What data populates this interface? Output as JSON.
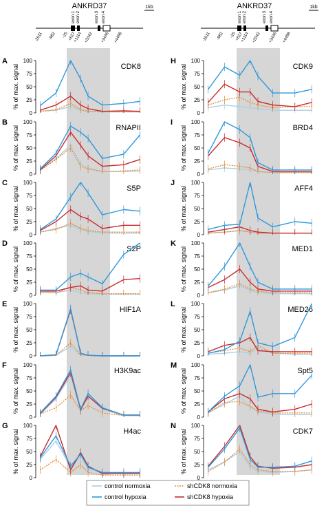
{
  "gene_maps": [
    {
      "gene": "ANKRD37",
      "scale": "1kb",
      "exons": [
        "exon 1",
        "exon 2",
        "exon 3",
        "exon 4"
      ],
      "positions": [
        "-2011",
        "-982",
        "-25",
        "+627",
        "+1114",
        "+2042",
        "+3436",
        "+4498"
      ]
    },
    {
      "gene": "ANKRD37",
      "scale": "1kb",
      "exons": [
        "exon 1",
        "exon 2",
        "exon 3",
        "exon 4"
      ],
      "positions": [
        "-2011",
        "-982",
        "-25",
        "+627",
        "+1114",
        "+2042",
        "+3436",
        "+4498"
      ]
    }
  ],
  "axis": {
    "ylabel": "% of max. signal",
    "yticks": [
      "0",
      "25",
      "50",
      "75",
      "100"
    ]
  },
  "legend": {
    "items": [
      {
        "label": "control normoxia",
        "color": "#a9cfe8",
        "style": "solid"
      },
      {
        "label": "shCDK8 normoxia",
        "color": "#e88a2a",
        "style": "dotted"
      },
      {
        "label": "control hypoxia",
        "color": "#2e97db",
        "style": "solid"
      },
      {
        "label": "shCDK8 hypoxia",
        "color": "#c8292b",
        "style": "solid"
      }
    ]
  },
  "chart_data": [
    {
      "panel": "A",
      "title": "CDK8",
      "type": "line",
      "ylim": [
        0,
        100
      ],
      "x": [
        "-2011",
        "-982",
        "-25",
        "+627",
        "+1114",
        "+2042",
        "+3436",
        "+4498"
      ],
      "series": [
        {
          "name": "control normoxia",
          "values": [
            3,
            5,
            12,
            5,
            3,
            2,
            2,
            2
          ]
        },
        {
          "name": "control hypoxia",
          "values": [
            14,
            38,
            100,
            65,
            32,
            15,
            18,
            22
          ]
        },
        {
          "name": "shCDK8 normoxia",
          "values": [
            3,
            6,
            18,
            6,
            3,
            2,
            2,
            2
          ]
        },
        {
          "name": "shCDK8 hypoxia",
          "values": [
            5,
            15,
            32,
            15,
            8,
            3,
            4,
            3
          ]
        }
      ]
    },
    {
      "panel": "B",
      "title": "RNAPII",
      "type": "line",
      "ylim": [
        0,
        100
      ],
      "x": [
        "-2011",
        "-982",
        "-25",
        "+627",
        "+1114",
        "+2042",
        "+3436",
        "+4498"
      ],
      "series": [
        {
          "name": "control normoxia",
          "values": [
            8,
            30,
            55,
            20,
            12,
            5,
            5,
            6
          ]
        },
        {
          "name": "control hypoxia",
          "values": [
            10,
            40,
            92,
            80,
            68,
            30,
            38,
            75
          ]
        },
        {
          "name": "shCDK8 normoxia",
          "values": [
            7,
            28,
            50,
            15,
            10,
            5,
            6,
            8
          ]
        },
        {
          "name": "shCDK8 hypoxia",
          "values": [
            8,
            35,
            80,
            55,
            35,
            15,
            18,
            28
          ]
        }
      ]
    },
    {
      "panel": "C",
      "title": "S5P",
      "type": "line",
      "ylim": [
        0,
        100
      ],
      "x": [
        "-2011",
        "-982",
        "-25",
        "+627",
        "+1114",
        "+2042",
        "+3436",
        "+4498"
      ],
      "series": [
        {
          "name": "control normoxia",
          "values": [
            5,
            12,
            18,
            10,
            6,
            3,
            3,
            3
          ]
        },
        {
          "name": "control hypoxia",
          "values": [
            10,
            30,
            72,
            100,
            80,
            38,
            48,
            45
          ]
        },
        {
          "name": "shCDK8 normoxia",
          "values": [
            5,
            10,
            22,
            12,
            8,
            5,
            5,
            5
          ]
        },
        {
          "name": "shCDK8 hypoxia",
          "values": [
            8,
            25,
            48,
            35,
            30,
            12,
            18,
            18
          ]
        }
      ]
    },
    {
      "panel": "D",
      "title": "S2P",
      "type": "line",
      "ylim": [
        0,
        100
      ],
      "x": [
        "-2011",
        "-982",
        "-25",
        "+627",
        "+1114",
        "+2042",
        "+3436",
        "+4498"
      ],
      "series": [
        {
          "name": "control normoxia",
          "values": [
            5,
            5,
            10,
            5,
            3,
            2,
            2,
            2
          ]
        },
        {
          "name": "control hypoxia",
          "values": [
            10,
            10,
            35,
            42,
            35,
            22,
            78,
            100
          ]
        },
        {
          "name": "shCDK8 normoxia",
          "values": [
            5,
            5,
            15,
            10,
            5,
            3,
            3,
            3
          ]
        },
        {
          "name": "shCDK8 hypoxia",
          "values": [
            8,
            8,
            15,
            18,
            10,
            8,
            30,
            32
          ]
        }
      ]
    },
    {
      "panel": "E",
      "title": "HIF1A",
      "type": "line",
      "ylim": [
        0,
        100
      ],
      "x": [
        "-2011",
        "-982",
        "-25",
        "+627",
        "+1114",
        "+2042",
        "+3436",
        "+4498"
      ],
      "series": [
        {
          "name": "control normoxia",
          "values": [
            0,
            1,
            18,
            2,
            1,
            0,
            0,
            0
          ]
        },
        {
          "name": "control hypoxia",
          "values": [
            0,
            2,
            90,
            5,
            1,
            0,
            0,
            0
          ]
        },
        {
          "name": "shCDK8 normoxia",
          "values": [
            0,
            1,
            25,
            2,
            1,
            0,
            0,
            0
          ]
        },
        {
          "name": "shCDK8 hypoxia",
          "values": [
            0,
            2,
            88,
            5,
            1,
            0,
            0,
            0
          ]
        }
      ]
    },
    {
      "panel": "F",
      "title": "H3K9ac",
      "type": "line",
      "ylim": [
        0,
        100
      ],
      "x": [
        "-2011",
        "-982",
        "-25",
        "+627",
        "+1114",
        "+2042",
        "+3436",
        "+4498"
      ],
      "series": [
        {
          "name": "control normoxia",
          "values": [
            5,
            35,
            80,
            12,
            42,
            15,
            3,
            3
          ]
        },
        {
          "name": "control hypoxia",
          "values": [
            8,
            40,
            90,
            15,
            45,
            18,
            4,
            4
          ]
        },
        {
          "name": "shCDK8 normoxia",
          "values": [
            6,
            18,
            42,
            12,
            22,
            8,
            3,
            3
          ]
        },
        {
          "name": "shCDK8 hypoxia",
          "values": [
            7,
            38,
            85,
            14,
            40,
            17,
            4,
            4
          ]
        }
      ]
    },
    {
      "panel": "G",
      "title": "H4ac",
      "type": "line",
      "ylim": [
        0,
        100
      ],
      "x": [
        "-2011",
        "-982",
        "-25",
        "+627",
        "+1114",
        "+2042",
        "+3436",
        "+4498"
      ],
      "series": [
        {
          "name": "control normoxia",
          "values": [
            35,
            70,
            20,
            40,
            18,
            8,
            8,
            8
          ]
        },
        {
          "name": "control hypoxia",
          "values": [
            38,
            80,
            22,
            45,
            20,
            10,
            10,
            10
          ]
        },
        {
          "name": "shCDK8 normoxia",
          "values": [
            15,
            35,
            10,
            25,
            10,
            5,
            5,
            5
          ]
        },
        {
          "name": "shCDK8 hypoxia",
          "values": [
            40,
            100,
            15,
            48,
            22,
            8,
            8,
            8
          ]
        }
      ]
    },
    {
      "panel": "H",
      "title": "CDK9",
      "type": "line",
      "ylim": [
        0,
        100
      ],
      "x": [
        "-2011",
        "-982",
        "-25",
        "+627",
        "+1114",
        "+2042",
        "+3436",
        "+4498"
      ],
      "series": [
        {
          "name": "control normoxia",
          "values": [
            10,
            15,
            12,
            10,
            8,
            5,
            5,
            5
          ]
        },
        {
          "name": "control hypoxia",
          "values": [
            45,
            88,
            72,
            100,
            70,
            38,
            38,
            45
          ]
        },
        {
          "name": "shCDK8 normoxia",
          "values": [
            15,
            25,
            30,
            20,
            15,
            10,
            12,
            12
          ]
        },
        {
          "name": "shCDK8 hypoxia",
          "values": [
            20,
            55,
            40,
            40,
            22,
            15,
            12,
            20
          ]
        }
      ]
    },
    {
      "panel": "I",
      "title": "BRD4",
      "type": "line",
      "ylim": [
        0,
        100
      ],
      "x": [
        "-2011",
        "-982",
        "-25",
        "+627",
        "+1114",
        "+2042",
        "+3436",
        "+4498"
      ],
      "series": [
        {
          "name": "control normoxia",
          "values": [
            8,
            12,
            10,
            8,
            5,
            3,
            3,
            3
          ]
        },
        {
          "name": "control hypoxia",
          "values": [
            40,
            100,
            85,
            70,
            22,
            8,
            8,
            8
          ]
        },
        {
          "name": "shCDK8 normoxia",
          "values": [
            10,
            18,
            15,
            12,
            5,
            3,
            3,
            3
          ]
        },
        {
          "name": "shCDK8 hypoxia",
          "values": [
            35,
            70,
            60,
            50,
            15,
            5,
            5,
            5
          ]
        }
      ]
    },
    {
      "panel": "J",
      "title": "AFF4",
      "type": "line",
      "ylim": [
        0,
        100
      ],
      "x": [
        "-2011",
        "-982",
        "-25",
        "+627",
        "+1114",
        "+2042",
        "+3436",
        "+4498"
      ],
      "series": [
        {
          "name": "control normoxia",
          "values": [
            3,
            5,
            8,
            5,
            3,
            3,
            3,
            3
          ]
        },
        {
          "name": "control hypoxia",
          "values": [
            10,
            18,
            20,
            100,
            32,
            15,
            25,
            22
          ]
        },
        {
          "name": "shCDK8 normoxia",
          "values": [
            3,
            5,
            8,
            5,
            3,
            3,
            3,
            3
          ]
        },
        {
          "name": "shCDK8 hypoxia",
          "values": [
            5,
            10,
            15,
            8,
            5,
            3,
            3,
            3
          ]
        }
      ]
    },
    {
      "panel": "K",
      "title": "MED1",
      "type": "line",
      "ylim": [
        0,
        100
      ],
      "x": [
        "-2011",
        "-982",
        "-25",
        "+627",
        "+1114",
        "+2042",
        "+3436",
        "+4498"
      ],
      "series": [
        {
          "name": "control normoxia",
          "values": [
            5,
            10,
            18,
            10,
            5,
            3,
            3,
            3
          ]
        },
        {
          "name": "control hypoxia",
          "values": [
            18,
            55,
            100,
            55,
            25,
            12,
            12,
            12
          ]
        },
        {
          "name": "shCDK8 normoxia",
          "values": [
            5,
            12,
            22,
            12,
            8,
            5,
            5,
            5
          ]
        },
        {
          "name": "shCDK8 hypoxia",
          "values": [
            15,
            30,
            50,
            25,
            12,
            8,
            8,
            8
          ]
        }
      ]
    },
    {
      "panel": "L",
      "title": "MED26",
      "type": "line",
      "ylim": [
        0,
        100
      ],
      "x": [
        "-2011",
        "-982",
        "-25",
        "+627",
        "+1114",
        "+2042",
        "+3436",
        "+4498"
      ],
      "series": [
        {
          "name": "control normoxia",
          "values": [
            3,
            5,
            8,
            5,
            15,
            5,
            3,
            3
          ]
        },
        {
          "name": "control hypoxia",
          "values": [
            5,
            12,
            28,
            85,
            25,
            18,
            35,
            100
          ]
        },
        {
          "name": "shCDK8 normoxia",
          "values": [
            5,
            10,
            15,
            8,
            20,
            5,
            5,
            5
          ]
        },
        {
          "name": "shCDK8 hypoxia",
          "values": [
            8,
            20,
            25,
            35,
            10,
            8,
            8,
            8
          ]
        }
      ]
    },
    {
      "panel": "M",
      "title": "Spt5",
      "type": "line",
      "ylim": [
        0,
        100
      ],
      "x": [
        "-2011",
        "-982",
        "-25",
        "+627",
        "+1114",
        "+2042",
        "+3436",
        "+4498"
      ],
      "series": [
        {
          "name": "control normoxia",
          "values": [
            8,
            25,
            40,
            20,
            10,
            5,
            5,
            5
          ]
        },
        {
          "name": "control hypoxia",
          "values": [
            10,
            40,
            60,
            100,
            38,
            45,
            45,
            80
          ]
        },
        {
          "name": "shCDK8 normoxia",
          "values": [
            8,
            28,
            30,
            20,
            12,
            8,
            8,
            8
          ]
        },
        {
          "name": "shCDK8 hypoxia",
          "values": [
            10,
            35,
            45,
            35,
            15,
            10,
            15,
            25
          ]
        }
      ]
    },
    {
      "panel": "N",
      "title": "CDK7",
      "type": "line",
      "ylim": [
        0,
        100
      ],
      "x": [
        "-2011",
        "-982",
        "-25",
        "+627",
        "+1114",
        "+2042",
        "+3436",
        "+4498"
      ],
      "series": [
        {
          "name": "control normoxia",
          "values": [
            15,
            30,
            50,
            20,
            12,
            10,
            12,
            15
          ]
        },
        {
          "name": "control hypoxia",
          "values": [
            20,
            55,
            95,
            35,
            20,
            20,
            22,
            32
          ]
        },
        {
          "name": "shCDK8 normoxia",
          "values": [
            12,
            30,
            55,
            25,
            15,
            12,
            12,
            15
          ]
        },
        {
          "name": "shCDK8 hypoxia",
          "values": [
            22,
            60,
            100,
            40,
            22,
            18,
            20,
            25
          ]
        }
      ]
    }
  ]
}
